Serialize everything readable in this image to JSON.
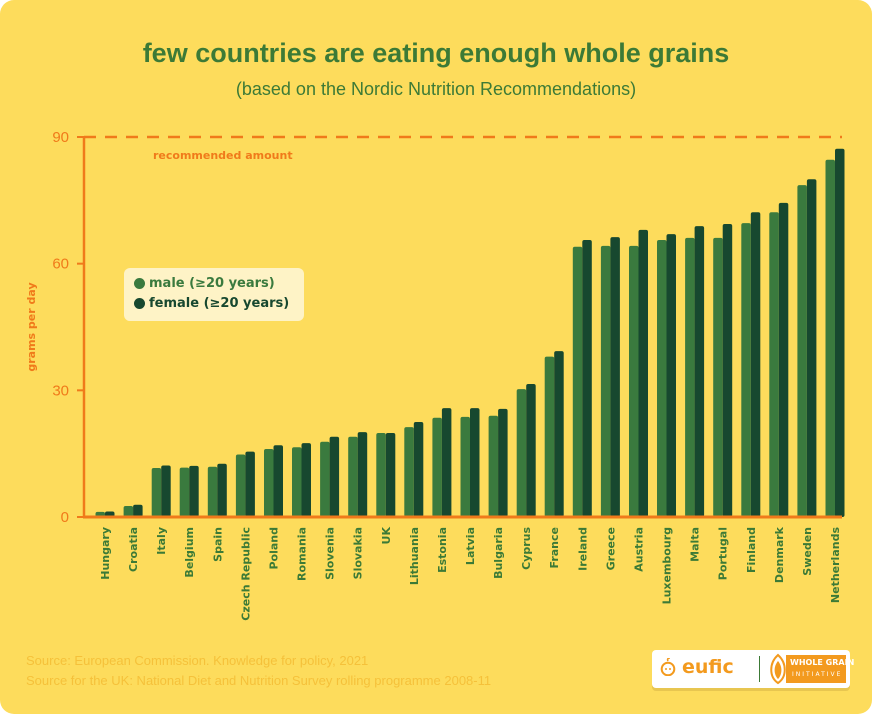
{
  "header": {
    "title": "few countries are eating enough whole grains",
    "subtitle": "(based on the Nordic Nutrition Recommendations)"
  },
  "legend": [
    {
      "label": "male (≥20 years)",
      "color": "#3A7A3E"
    },
    {
      "label": "female (≥20 years)",
      "color": "#17482F"
    }
  ],
  "colors": {
    "background": "#FDDC5C",
    "axis": "#F07A1A",
    "title": "#3C7A36",
    "male": "#3A7A3E",
    "female": "#17482F"
  },
  "footer": {
    "sources": [
      "Source: European Commission. Knowledge for policy, 2021",
      "Source for the UK: National Diet and Nutrition Survey rolling programme 2008-11"
    ],
    "logo": {
      "eufic": "eufic",
      "wgi_top": "WHOLE GRAIN",
      "wgi_bottom": "INITIATIVE"
    }
  },
  "chart_data": {
    "type": "bar",
    "title": "few countries are eating enough whole grains",
    "subtitle": "(based on the Nordic Nutrition Recommendations)",
    "xlabel": "",
    "ylabel": "grams per day",
    "ylim": [
      0,
      90
    ],
    "yticks": [
      0,
      30,
      60,
      90
    ],
    "grid": false,
    "legend_position": "upper-left",
    "reference_line": {
      "value": 90,
      "label": "recommended amount",
      "style": "dashed"
    },
    "categories": [
      "Hungary",
      "Croatia",
      "Italy",
      "Belgium",
      "Spain",
      "Czech Republic",
      "Poland",
      "Romania",
      "Slovenia",
      "Slovakia",
      "UK",
      "Lithuania",
      "Estonia",
      "Latvia",
      "Bulgaria",
      "Cyprus",
      "France",
      "Ireland",
      "Greece",
      "Austria",
      "Luxembourg",
      "Malta",
      "Portugal",
      "Finland",
      "Denmark",
      "Sweden",
      "Netherlands"
    ],
    "series": [
      {
        "name": "male (≥20 years)",
        "values": [
          1.2,
          2.6,
          11.6,
          11.7,
          11.9,
          14.8,
          16.1,
          16.5,
          17.8,
          19.0,
          19.9,
          21.3,
          23.5,
          23.7,
          24.0,
          30.3,
          38.0,
          64.0,
          64.2,
          64.2,
          65.6,
          66.1,
          66.1,
          69.6,
          72.2,
          78.6,
          84.6
        ]
      },
      {
        "name": "female (≥20 years)",
        "values": [
          1.3,
          2.9,
          12.2,
          12.1,
          12.6,
          15.5,
          17.0,
          17.5,
          19.0,
          20.1,
          19.9,
          22.5,
          25.8,
          25.8,
          25.6,
          31.5,
          39.3,
          65.6,
          66.3,
          68.0,
          67.0,
          68.9,
          69.4,
          72.2,
          74.4,
          80.0,
          87.2
        ]
      }
    ]
  }
}
